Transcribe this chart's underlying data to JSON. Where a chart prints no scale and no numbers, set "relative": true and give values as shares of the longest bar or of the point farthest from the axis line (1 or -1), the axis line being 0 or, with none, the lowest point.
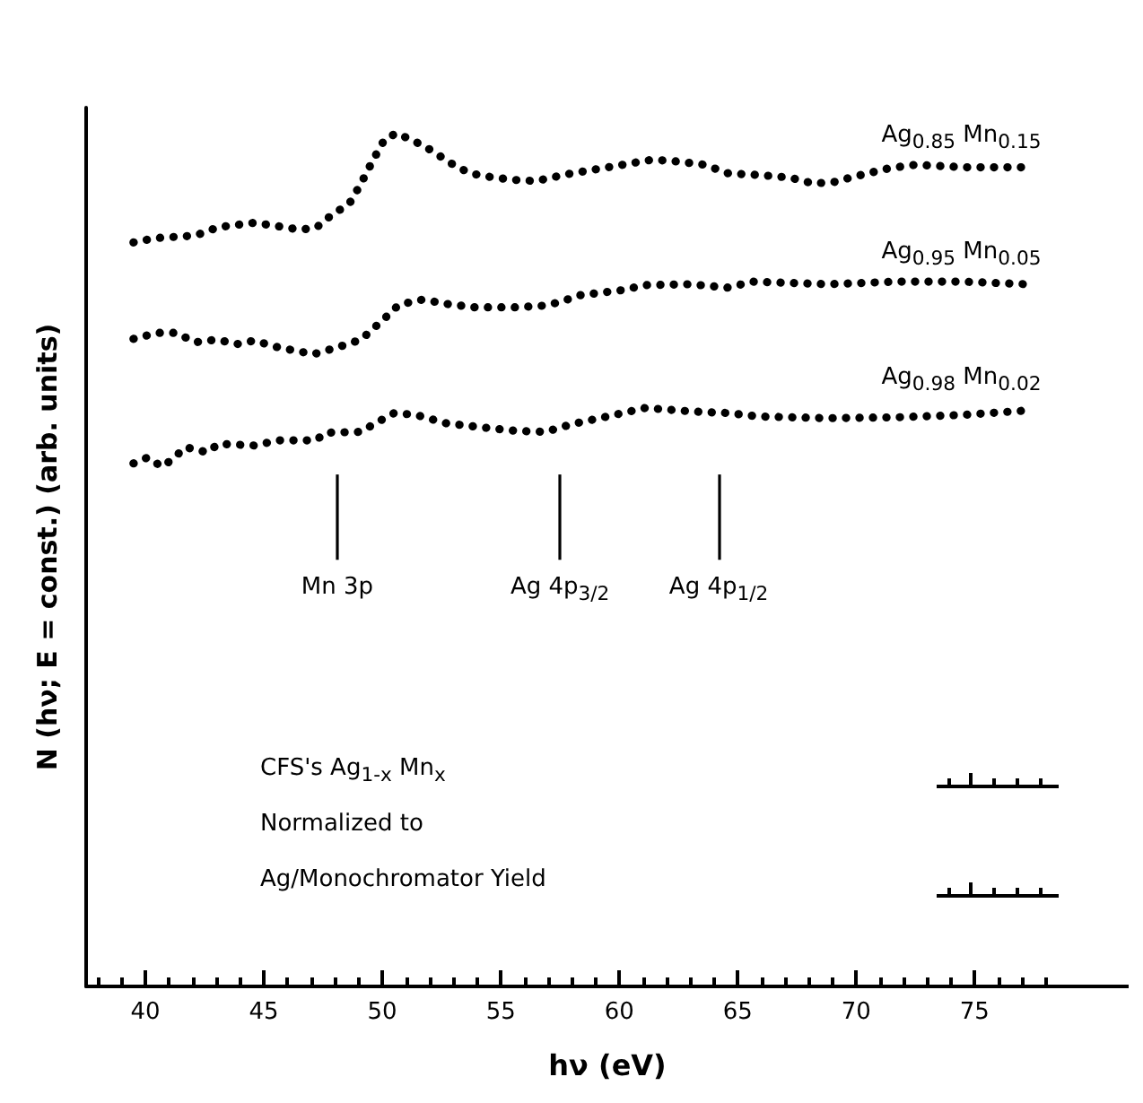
{
  "chart_data": {
    "type": "line",
    "relative": true,
    "xlabel": "hν (eV)",
    "ylabel": "N (hν; E = const.) (arb. units)",
    "xlim": [
      37.5,
      81.5
    ],
    "xticks": [
      40,
      45,
      50,
      55,
      60,
      65,
      70,
      75
    ],
    "line_style": "dotted",
    "ref_lines": [
      {
        "axis": "x",
        "value": 48.1,
        "label": "Mn 3p"
      },
      {
        "axis": "x",
        "value": 57.5,
        "label": "Ag 4p$_{3/2}$"
      },
      {
        "axis": "x",
        "value": 64.2,
        "label": "Ag 4p$_{1/2}$"
      }
    ],
    "annotations": [
      "CFS's Ag$_{1-x}$ Mn$_{x}$",
      "Normalized to",
      "Ag/Monochromator Yield"
    ],
    "series": [
      {
        "name": "Ag$_{0.85}$ Mn$_{0.15}$",
        "color": "#000000",
        "x": [
          39.5,
          40.4,
          42.1,
          43.1,
          44.6,
          45.6,
          46.5,
          47.2,
          47.9,
          48.6,
          49.1,
          49.6,
          50.1,
          50.6,
          51.4,
          52.0,
          53.0,
          53.7,
          54.7,
          55.7,
          56.5,
          57.8,
          59.5,
          61.4,
          62.4,
          63.6,
          64.6,
          65.9,
          67.2,
          68.2,
          69.1,
          69.9,
          71.4,
          72.5,
          74.6,
          77.2
        ],
        "values": [
          0.872,
          0.877,
          0.88,
          0.89,
          0.895,
          0.891,
          0.887,
          0.889,
          0.905,
          0.917,
          0.941,
          0.968,
          0.993,
          1.0,
          0.99,
          0.981,
          0.963,
          0.953,
          0.948,
          0.945,
          0.944,
          0.952,
          0.96,
          0.969,
          0.967,
          0.963,
          0.953,
          0.951,
          0.948,
          0.941,
          0.943,
          0.949,
          0.959,
          0.963,
          0.96,
          0.96
        ]
      },
      {
        "name": "Ag$_{0.95}$ Mn$_{0.05}$",
        "color": "#000000",
        "x": [
          39.5,
          40.5,
          41.3,
          42.1,
          43.0,
          43.9,
          44.6,
          45.6,
          47.1,
          48.1,
          49.1,
          49.7,
          50.1,
          50.7,
          51.7,
          52.7,
          53.9,
          55.7,
          56.9,
          57.6,
          58.3,
          60.1,
          61.1,
          63.0,
          64.6,
          65.6,
          68.8,
          71.7,
          74.6,
          77.2
        ],
        "values": [
          0.759,
          0.766,
          0.766,
          0.755,
          0.758,
          0.753,
          0.757,
          0.749,
          0.741,
          0.749,
          0.758,
          0.773,
          0.783,
          0.799,
          0.805,
          0.8,
          0.796,
          0.796,
          0.798,
          0.803,
          0.81,
          0.816,
          0.822,
          0.823,
          0.819,
          0.826,
          0.823,
          0.826,
          0.826,
          0.823
        ]
      },
      {
        "name": "Ag$_{0.98}$ Mn$_{0.02}$",
        "color": "#000000",
        "x": [
          39.5,
          40.1,
          40.7,
          41.1,
          41.7,
          42.6,
          43.1,
          44.6,
          45.6,
          47.2,
          47.6,
          49.1,
          49.7,
          50.5,
          51.4,
          52.7,
          54.3,
          55.7,
          56.9,
          58.0,
          59.5,
          61.1,
          63.0,
          64.6,
          65.9,
          68.8,
          71.7,
          74.6,
          77.2
        ],
        "values": [
          0.613,
          0.62,
          0.609,
          0.617,
          0.632,
          0.626,
          0.636,
          0.634,
          0.64,
          0.64,
          0.649,
          0.65,
          0.66,
          0.672,
          0.67,
          0.66,
          0.655,
          0.651,
          0.65,
          0.659,
          0.668,
          0.678,
          0.674,
          0.672,
          0.668,
          0.666,
          0.667,
          0.67,
          0.675
        ]
      }
    ]
  }
}
